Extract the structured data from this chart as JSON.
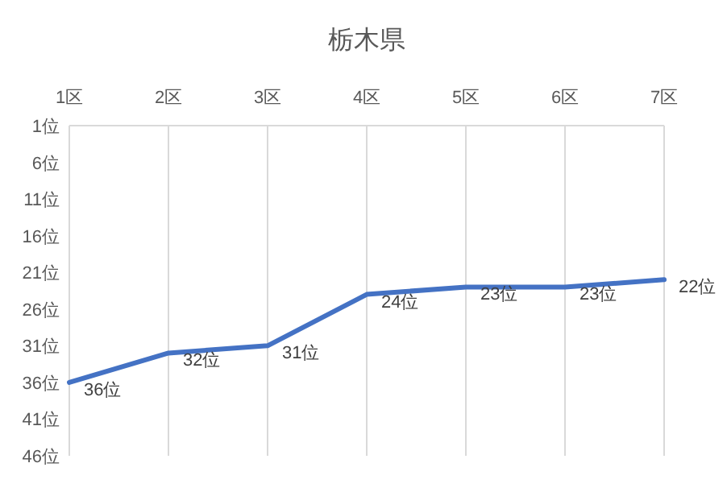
{
  "chart_data": {
    "type": "line",
    "title": "栃木県",
    "categories": [
      "1区",
      "2区",
      "3区",
      "4区",
      "5区",
      "6区",
      "7区"
    ],
    "series": [
      {
        "color": "#4472c4",
        "values": [
          36,
          32,
          31,
          24,
          23,
          23,
          22
        ],
        "value_labels": [
          "36位",
          "32位",
          "31位",
          "24位",
          "23位",
          "23位",
          "22位"
        ]
      }
    ],
    "ylim": [
      46,
      1
    ],
    "yticks": [
      {
        "value": 1,
        "label": "1位"
      },
      {
        "value": 6,
        "label": "6位"
      },
      {
        "value": 11,
        "label": "11位"
      },
      {
        "value": 16,
        "label": "16位"
      },
      {
        "value": 21,
        "label": "21位"
      },
      {
        "value": 26,
        "label": "26位"
      },
      {
        "value": 31,
        "label": "31位"
      },
      {
        "value": 36,
        "label": "36位"
      },
      {
        "value": 41,
        "label": "41位"
      },
      {
        "value": 46,
        "label": "46位"
      }
    ],
    "grid": "x",
    "marker": "none",
    "line_style": "solid"
  }
}
